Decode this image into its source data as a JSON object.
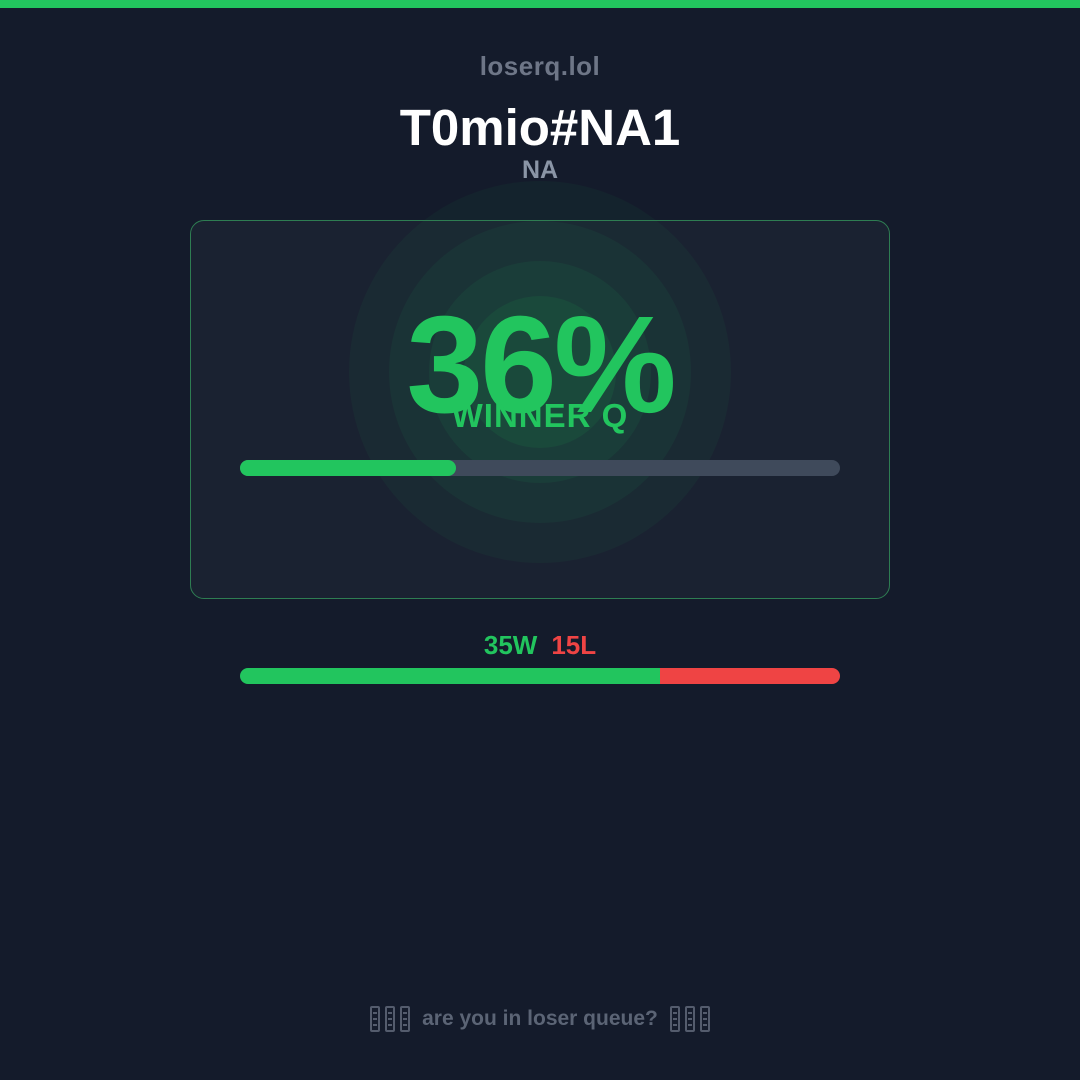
{
  "site": {
    "brand": "loserq.lol"
  },
  "player": {
    "riot_id": "T0mio#NA1",
    "region": "NA"
  },
  "winner_q": {
    "percent": 36,
    "percent_label": "36%",
    "caption": "WINNER Q"
  },
  "record": {
    "wins": 35,
    "losses": 15,
    "wins_label": "35W",
    "losses_label": "15L",
    "win_rate_percent": 70
  },
  "footer": {
    "question": "are you in loser queue?",
    "flank_icon": "missing-glyph-boxes",
    "flank_icon_count": 3
  },
  "colors": {
    "page_bg": "#141b2b",
    "card_bg": "#1a2231",
    "card_border": "#2e7d52",
    "accent_green": "#22c55e",
    "loss_red": "#ef4444",
    "track_gray": "#3f4a5b",
    "muted_text": "#6e7687",
    "region_text": "#8a95a6",
    "footer_text": "#5b6475",
    "title_text": "#ffffff"
  }
}
